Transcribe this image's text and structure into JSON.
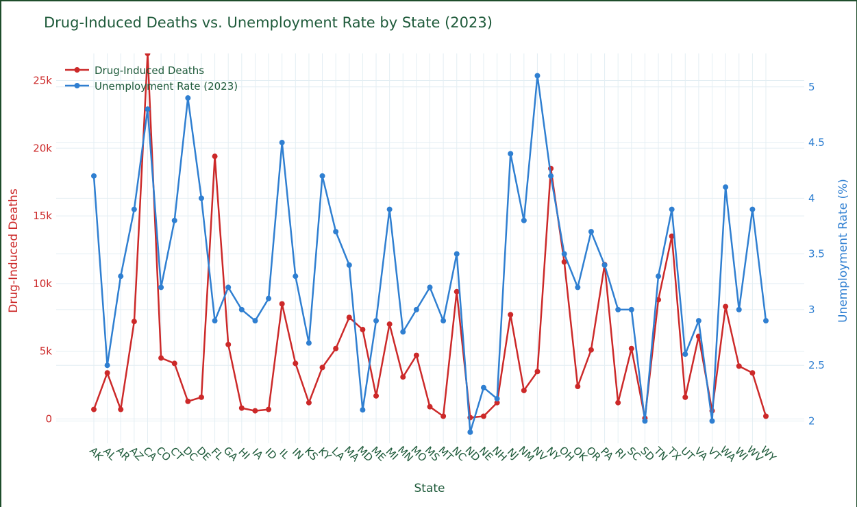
{
  "chart_data": {
    "type": "line",
    "title": "Drug-Induced Deaths vs. Unemployment Rate by State (2023)",
    "xlabel": "State",
    "ylabel": "Drug-Induced Deaths",
    "y2label": "Unemployment Rate (%)",
    "legend_position": "top-left",
    "grid": true,
    "ylim": [
      -1800,
      27000
    ],
    "y2lim": [
      1.8,
      5.3
    ],
    "yticks": [
      0,
      5000,
      10000,
      15000,
      20000,
      25000
    ],
    "ytick_labels": [
      "0",
      "5k",
      "10k",
      "15k",
      "20k",
      "25k"
    ],
    "y2ticks": [
      2,
      2.5,
      3,
      3.5,
      4,
      4.5,
      5
    ],
    "y2tick_labels": [
      "2",
      "2.5",
      "3",
      "3.5",
      "4",
      "4.5",
      "5"
    ],
    "categories": [
      "AK",
      "AL",
      "AR",
      "AZ",
      "CA",
      "CO",
      "CT",
      "DC",
      "DE",
      "FL",
      "GA",
      "HI",
      "IA",
      "ID",
      "IL",
      "IN",
      "KS",
      "KY",
      "LA",
      "MA",
      "MD",
      "ME",
      "MI",
      "MN",
      "MO",
      "MS",
      "MT",
      "NC",
      "ND",
      "NE",
      "NH",
      "NJ",
      "NM",
      "NV",
      "NY",
      "OH",
      "OK",
      "OR",
      "PA",
      "RI",
      "SC",
      "SD",
      "TN",
      "TX",
      "UT",
      "VA",
      "VT",
      "WA",
      "WI",
      "WV",
      "WY"
    ],
    "colors": {
      "deaths": "#cc2929",
      "unemployment": "#2f7fd1",
      "title": "#1e5a3a",
      "grid": "#e3eef3"
    },
    "series": [
      {
        "name": "Drug-Induced Deaths",
        "axis": "left",
        "values": [
          700,
          3400,
          700,
          7200,
          27000,
          4500,
          4100,
          1300,
          1600,
          19400,
          5500,
          800,
          600,
          700,
          8500,
          4100,
          1200,
          3800,
          5200,
          7500,
          6600,
          1700,
          7000,
          3100,
          4700,
          900,
          200,
          9400,
          100,
          200,
          1200,
          7700,
          2100,
          3500,
          18500,
          11600,
          2400,
          5100,
          11400,
          1200,
          5200,
          50,
          8800,
          13500,
          1600,
          6100,
          600,
          8300,
          3900,
          3400,
          200
        ]
      },
      {
        "name": "Unemployment Rate (2023)",
        "axis": "right",
        "values": [
          4.2,
          2.5,
          3.3,
          3.9,
          4.8,
          3.2,
          3.8,
          4.9,
          4.0,
          2.9,
          3.2,
          3.0,
          2.9,
          3.1,
          4.5,
          3.3,
          2.7,
          4.2,
          3.7,
          3.4,
          2.1,
          2.9,
          3.9,
          2.8,
          3.0,
          3.2,
          2.9,
          3.5,
          1.9,
          2.3,
          2.2,
          4.4,
          3.8,
          5.1,
          4.2,
          3.5,
          3.2,
          3.7,
          3.4,
          3.0,
          3.0,
          2.0,
          3.3,
          3.9,
          2.6,
          2.9,
          2.0,
          4.1,
          3.0,
          3.9,
          2.9
        ]
      }
    ]
  }
}
